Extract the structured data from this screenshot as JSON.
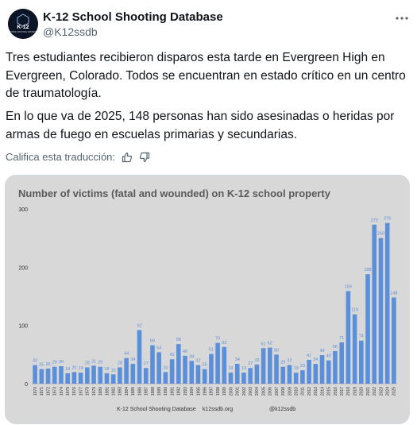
{
  "account": {
    "name": "K-12 School Shooting Database",
    "handle": "@K12ssdb",
    "avatar_text": "K-12",
    "avatar_subtext": "SCHOOL SHOOTING DATABASE"
  },
  "tweet": {
    "paragraph1": "Tres estudiantes recibieron disparos esta tarde en Evergreen High en Evergreen, Colorado. Todos se encuentran en estado crítico en un centro de traumatología.",
    "paragraph2": "En lo que va de 2025, 148 personas han sido asesinadas o heridas por armas de fuego en escuelas primarias y secundarias.",
    "translation_prompt": "Califica esta traducción:"
  },
  "icons": {
    "more": "more-icon",
    "thumbs_up": "thumbs-up-icon",
    "thumbs_down": "thumbs-down-icon"
  },
  "colors": {
    "bar": "#5b8fd9",
    "label": "#5b8fd9",
    "chart_bg": "#d8d8d8"
  },
  "chart_data": {
    "type": "bar",
    "title": "Number of victims (fatal and wounded) on K-12 school property",
    "categories": [
      "1970",
      "1971",
      "1972",
      "1973",
      "1974",
      "1975",
      "1976",
      "1977",
      "1978",
      "1979",
      "1980",
      "1981",
      "1982",
      "1983",
      "1984",
      "1985",
      "1986",
      "1987",
      "1988",
      "1989",
      "1990",
      "1991",
      "1992",
      "1993",
      "1994",
      "1995",
      "1996",
      "1997",
      "1998",
      "1999",
      "2000",
      "2001",
      "2002",
      "2003",
      "2004",
      "2005",
      "2006",
      "2007",
      "2008",
      "2009",
      "2010",
      "2011",
      "2012",
      "2013",
      "2014",
      "2015",
      "2016",
      "2017",
      "2018",
      "2019",
      "2020",
      "2021",
      "2022",
      "2023",
      "2024",
      "2025"
    ],
    "values": [
      32,
      25,
      26,
      29,
      30,
      18,
      20,
      19,
      28,
      31,
      29,
      18,
      16,
      28,
      44,
      34,
      92,
      27,
      66,
      54,
      20,
      42,
      68,
      48,
      39,
      32,
      25,
      51,
      70,
      63,
      19,
      34,
      19,
      27,
      33,
      61,
      62,
      50,
      29,
      32,
      19,
      23,
      41,
      34,
      49,
      40,
      56,
      71,
      159,
      119,
      74,
      188,
      273,
      250,
      276,
      148
    ],
    "ylim": [
      0,
      300
    ],
    "yticks": [
      0,
      100,
      200,
      300
    ],
    "grid": false,
    "footer": [
      "K-12 School Shooting Database",
      "k12ssdb.org",
      "@k12ssdb"
    ]
  }
}
